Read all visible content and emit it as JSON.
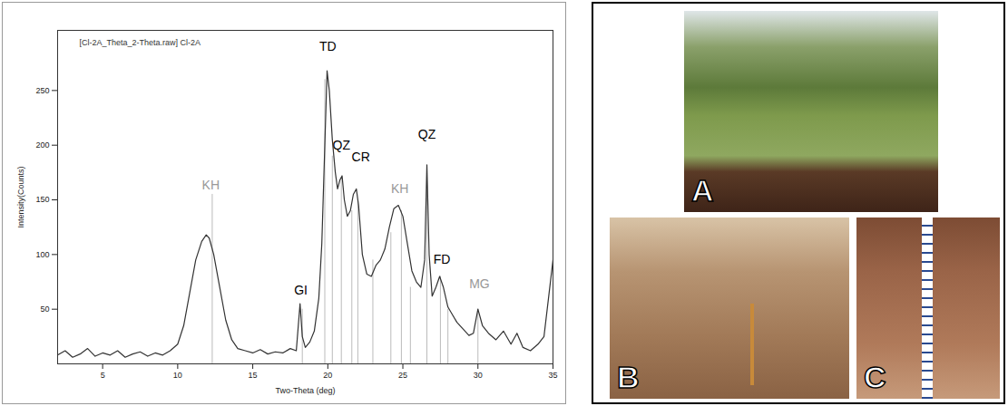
{
  "chart_data": {
    "type": "line",
    "title": "[Cl-2A_Theta_2-Theta.raw] Cl-2A",
    "x_label": "Two-Theta (deg)",
    "y_label": "Intensity(Counts)",
    "color": "#333333",
    "x": [
      2,
      2.5,
      3,
      3.5,
      4,
      4.5,
      5,
      5.5,
      6,
      6.5,
      7,
      7.5,
      8,
      8.5,
      9,
      9.5,
      10,
      10.4,
      10.8,
      11.2,
      11.6,
      11.9,
      12.1,
      12.4,
      12.8,
      13.2,
      13.6,
      14,
      14.5,
      15,
      15.5,
      16,
      16.5,
      17,
      17.5,
      17.9,
      18.15,
      18.3,
      18.5,
      18.8,
      19.1,
      19.4,
      19.6,
      19.8,
      19.95,
      20.1,
      20.3,
      20.5,
      20.65,
      20.8,
      20.95,
      21.1,
      21.3,
      21.5,
      21.7,
      21.9,
      22.05,
      22.3,
      22.6,
      22.9,
      23.2,
      23.5,
      23.8,
      24.1,
      24.4,
      24.7,
      25.0,
      25.3,
      25.6,
      25.9,
      26.2,
      26.45,
      26.6,
      26.75,
      26.95,
      27.2,
      27.45,
      27.7,
      28.0,
      28.3,
      28.6,
      29.0,
      29.4,
      29.7,
      30.0,
      30.3,
      30.7,
      31.2,
      31.7,
      32.2,
      32.6,
      33.0,
      33.5,
      34.0,
      34.4,
      34.7,
      35.0
    ],
    "values": [
      8,
      12,
      6,
      9,
      14,
      7,
      10,
      8,
      12,
      6,
      9,
      11,
      7,
      10,
      8,
      12,
      18,
      35,
      65,
      95,
      112,
      118,
      115,
      100,
      70,
      40,
      22,
      14,
      12,
      10,
      13,
      9,
      11,
      10,
      14,
      12,
      55,
      25,
      15,
      20,
      30,
      60,
      110,
      200,
      268,
      250,
      205,
      175,
      160,
      168,
      172,
      150,
      135,
      140,
      155,
      160,
      145,
      100,
      82,
      80,
      90,
      95,
      105,
      125,
      142,
      145,
      135,
      110,
      85,
      75,
      70,
      95,
      182,
      100,
      62,
      70,
      80,
      70,
      52,
      45,
      38,
      32,
      26,
      28,
      50,
      35,
      28,
      22,
      30,
      18,
      28,
      15,
      12,
      18,
      25,
      60,
      95
    ],
    "sticks": {
      "color": "#bbbbbb",
      "x": [
        12.3,
        18.3,
        19.8,
        20.3,
        20.9,
        21.6,
        22.0,
        23.0,
        24.2,
        24.9,
        25.5,
        26.6,
        27.5,
        28.0,
        30.0
      ],
      "values": [
        155,
        50,
        260,
        190,
        170,
        140,
        150,
        95,
        120,
        140,
        70,
        180,
        80,
        50,
        50
      ]
    },
    "annotations": [
      {
        "text": "KH",
        "x": 12.2,
        "y": 163,
        "color": "#999999"
      },
      {
        "text": "GI",
        "x": 18.2,
        "y": 67,
        "color": "#000000"
      },
      {
        "text": "TD",
        "x": 20.0,
        "y": 290,
        "color": "#000000"
      },
      {
        "text": "QZ",
        "x": 20.9,
        "y": 200,
        "color": "#000000"
      },
      {
        "text": "CR",
        "x": 22.2,
        "y": 189,
        "color": "#000000"
      },
      {
        "text": "KH",
        "x": 24.8,
        "y": 160,
        "color": "#999999"
      },
      {
        "text": "QZ",
        "x": 26.6,
        "y": 210,
        "color": "#000000"
      },
      {
        "text": "FD",
        "x": 27.6,
        "y": 95,
        "color": "#000000"
      },
      {
        "text": "MG",
        "x": 30.1,
        "y": 73,
        "color": "#999999"
      }
    ],
    "xlim": [
      2,
      35
    ],
    "xticks": [
      5,
      10,
      15,
      20,
      25,
      30,
      35
    ],
    "ylim": [
      0,
      305
    ],
    "yticks": [
      50,
      100,
      150,
      200,
      250
    ],
    "grid": false
  },
  "photos": [
    {
      "label": "A"
    },
    {
      "label": "B"
    },
    {
      "label": "C"
    }
  ]
}
